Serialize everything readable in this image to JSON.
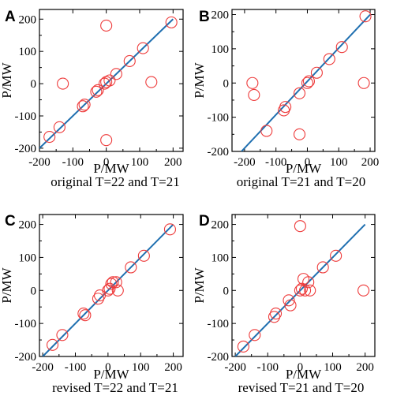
{
  "chart_data": [
    {
      "type": "scatter",
      "panel": "A",
      "xlabel": "P/MW",
      "ylabel": "P/MW",
      "caption": "original T=22 and T=21",
      "xlim": [
        -200,
        230
      ],
      "ylim": [
        -210,
        230
      ],
      "xticks": [
        -200,
        -100,
        0,
        100,
        200
      ],
      "yticks": [
        -200,
        -100,
        0,
        100,
        200
      ],
      "line": [
        [
          -200,
          -200
        ],
        [
          200,
          200
        ]
      ],
      "points": [
        [
          -170,
          -165
        ],
        [
          -140,
          -135
        ],
        [
          -130,
          0
        ],
        [
          -70,
          -70
        ],
        [
          -65,
          -65
        ],
        [
          -30,
          -25
        ],
        [
          -25,
          -20
        ],
        [
          -5,
          0
        ],
        [
          0,
          180
        ],
        [
          0,
          -175
        ],
        [
          0,
          5
        ],
        [
          10,
          10
        ],
        [
          30,
          30
        ],
        [
          70,
          70
        ],
        [
          110,
          110
        ],
        [
          135,
          5
        ],
        [
          195,
          190
        ]
      ]
    },
    {
      "type": "scatter",
      "panel": "B",
      "xlabel": "P/MW",
      "ylabel": "P/MW",
      "caption": "original T=21 and T=20",
      "xlim": [
        -240,
        215
      ],
      "ylim": [
        -200,
        215
      ],
      "xticks": [
        -200,
        -100,
        0,
        100,
        200
      ],
      "yticks": [
        -200,
        -100,
        0,
        100,
        200
      ],
      "line": [
        [
          -210,
          -200
        ],
        [
          200,
          200
        ]
      ],
      "points": [
        [
          -175,
          0
        ],
        [
          -170,
          -35
        ],
        [
          -130,
          -140
        ],
        [
          -75,
          -80
        ],
        [
          -70,
          -70
        ],
        [
          -25,
          -30
        ],
        [
          -25,
          -150
        ],
        [
          0,
          0
        ],
        [
          5,
          5
        ],
        [
          30,
          30
        ],
        [
          70,
          70
        ],
        [
          110,
          105
        ],
        [
          185,
          195
        ],
        [
          180,
          0
        ]
      ]
    },
    {
      "type": "scatter",
      "panel": "C",
      "xlabel": "P/MW",
      "ylabel": "P/MW",
      "caption": "revised T=22 and T=21",
      "xlim": [
        -210,
        230
      ],
      "ylim": [
        -200,
        230
      ],
      "xticks": [
        -200,
        -100,
        0,
        100,
        200
      ],
      "yticks": [
        -200,
        -100,
        0,
        100,
        200
      ],
      "line": [
        [
          -200,
          -200
        ],
        [
          200,
          200
        ]
      ],
      "points": [
        [
          -170,
          -165
        ],
        [
          -140,
          -135
        ],
        [
          -75,
          -70
        ],
        [
          -70,
          -75
        ],
        [
          -30,
          -25
        ],
        [
          -25,
          -15
        ],
        [
          0,
          0
        ],
        [
          5,
          5
        ],
        [
          10,
          20
        ],
        [
          15,
          25
        ],
        [
          25,
          25
        ],
        [
          30,
          0
        ],
        [
          70,
          70
        ],
        [
          110,
          105
        ],
        [
          190,
          185
        ]
      ]
    },
    {
      "type": "scatter",
      "panel": "D",
      "xlabel": "P/MW",
      "ylabel": "P/MW",
      "caption": "revised T=21 and T=20",
      "xlim": [
        -210,
        230
      ],
      "ylim": [
        -200,
        230
      ],
      "xticks": [
        -200,
        -100,
        0,
        100,
        200
      ],
      "yticks": [
        -200,
        -100,
        0,
        100,
        200
      ],
      "line": [
        [
          -200,
          -200
        ],
        [
          200,
          200
        ]
      ],
      "points": [
        [
          -175,
          -170
        ],
        [
          -140,
          -135
        ],
        [
          -80,
          -80
        ],
        [
          -75,
          -70
        ],
        [
          -35,
          -30
        ],
        [
          -30,
          -45
        ],
        [
          0,
          195
        ],
        [
          0,
          0
        ],
        [
          5,
          5
        ],
        [
          10,
          35
        ],
        [
          15,
          0
        ],
        [
          25,
          25
        ],
        [
          30,
          0
        ],
        [
          70,
          70
        ],
        [
          110,
          105
        ],
        [
          195,
          0
        ]
      ]
    }
  ]
}
